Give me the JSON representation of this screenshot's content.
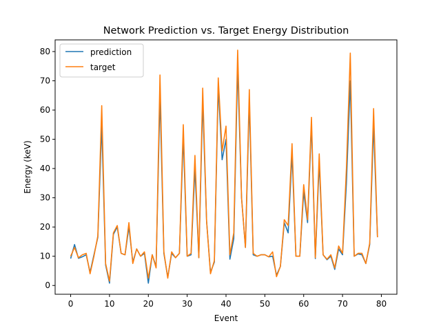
{
  "chart_data": {
    "type": "line",
    "title": "Network Prediction vs. Target Energy Distribution",
    "xlabel": "Event",
    "ylabel": "Energy (keV)",
    "xlim": [
      -4,
      84
    ],
    "ylim": [
      -3,
      84
    ],
    "xticks": [
      0,
      10,
      20,
      30,
      40,
      50,
      60,
      70,
      80
    ],
    "yticks": [
      0,
      10,
      20,
      30,
      40,
      50,
      60,
      70,
      80
    ],
    "legend_position": "top-left",
    "series": [
      {
        "name": "prediction",
        "color": "#1f77b4",
        "values": [
          9.2,
          14.0,
          9.3,
          9.8,
          10.5,
          4.5,
          10.5,
          16.5,
          55.0,
          7.0,
          0.8,
          17.5,
          20.0,
          11.0,
          10.5,
          20.0,
          8.0,
          12.5,
          10.0,
          11.0,
          0.8,
          10.5,
          6.5,
          65.0,
          11.0,
          2.8,
          11.0,
          9.5,
          11.0,
          51.0,
          10.0,
          10.5,
          40.0,
          9.5,
          63.0,
          22.0,
          4.5,
          8.0,
          68.0,
          43.0,
          50.0,
          9.0,
          16.0,
          75.0,
          30.0,
          13.0,
          63.0,
          10.5,
          10.0,
          10.5,
          10.5,
          9.8,
          10.0,
          3.5,
          6.5,
          21.5,
          18.0,
          45.0,
          10.0,
          10.0,
          32.0,
          21.5,
          55.0,
          9.2,
          42.0,
          10.5,
          8.8,
          10.0,
          5.5,
          12.5,
          10.5,
          35.0,
          70.0,
          10.0,
          10.8,
          10.5,
          7.5,
          14.0,
          55.0,
          16.5
        ]
      },
      {
        "name": "target",
        "color": "#ff7f0e",
        "values": [
          10.0,
          13.0,
          9.5,
          10.5,
          11.0,
          4.0,
          10.0,
          17.0,
          61.5,
          7.5,
          1.5,
          18.0,
          20.5,
          11.0,
          10.5,
          21.5,
          7.5,
          12.5,
          10.0,
          11.5,
          2.5,
          10.5,
          6.0,
          72.0,
          11.5,
          2.5,
          11.5,
          9.5,
          11.0,
          55.0,
          10.0,
          11.0,
          44.5,
          9.5,
          67.5,
          22.0,
          4.0,
          8.5,
          71.0,
          46.0,
          54.5,
          10.5,
          18.0,
          80.5,
          30.0,
          13.0,
          67.0,
          11.0,
          10.0,
          10.5,
          10.5,
          9.8,
          11.5,
          3.0,
          6.5,
          22.5,
          20.5,
          48.5,
          10.0,
          10.0,
          34.5,
          22.5,
          57.5,
          9.5,
          45.0,
          10.5,
          9.0,
          10.5,
          6.0,
          13.5,
          11.0,
          40.0,
          79.5,
          10.0,
          11.0,
          11.0,
          7.5,
          14.5,
          60.5,
          16.5
        ]
      }
    ]
  }
}
